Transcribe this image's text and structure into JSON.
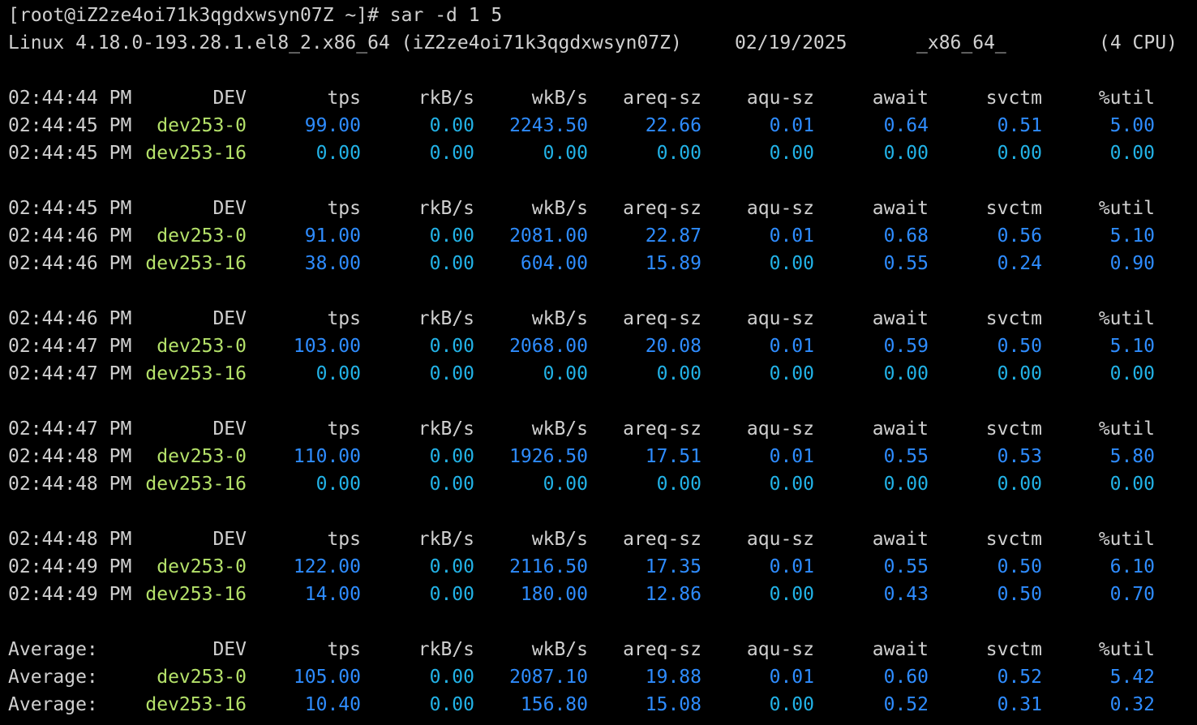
{
  "prompt": "[root@iZ2ze4oi71k3qgdxwsyn07Z ~]# sar -d 1 5",
  "sysinfo": {
    "kernel": "Linux 4.18.0-193.28.1.el8_2.x86_64 (iZ2ze4oi71k3qgdxwsyn07Z)",
    "date": "02/19/2025",
    "arch": "_x86_64_",
    "cpus": "(4 CPU)"
  },
  "header_labels": {
    "dev": "DEV",
    "tps": "tps",
    "rkb": "rkB/s",
    "wkb": "wkB/s",
    "areq": "areq-sz",
    "aqu": "aqu-sz",
    "await": "await",
    "svctm": "svctm",
    "util": "%util"
  },
  "colors": {
    "background": "#000000",
    "text": "#d0d0d0",
    "device": "#b5e26a",
    "nonzero_value": "#2e8cff",
    "zero_value": "#22b2e6"
  },
  "blocks": [
    {
      "header_time": "02:44:44 PM",
      "rows": [
        {
          "time": "02:44:45 PM",
          "dev": "dev253-0",
          "tps": "99.00",
          "rkb": "0.00",
          "wkb": "2243.50",
          "areq": "22.66",
          "aqu": "0.01",
          "await": "0.64",
          "svctm": "0.51",
          "util": "5.00"
        },
        {
          "time": "02:44:45 PM",
          "dev": "dev253-16",
          "tps": "0.00",
          "rkb": "0.00",
          "wkb": "0.00",
          "areq": "0.00",
          "aqu": "0.00",
          "await": "0.00",
          "svctm": "0.00",
          "util": "0.00"
        }
      ]
    },
    {
      "header_time": "02:44:45 PM",
      "rows": [
        {
          "time": "02:44:46 PM",
          "dev": "dev253-0",
          "tps": "91.00",
          "rkb": "0.00",
          "wkb": "2081.00",
          "areq": "22.87",
          "aqu": "0.01",
          "await": "0.68",
          "svctm": "0.56",
          "util": "5.10"
        },
        {
          "time": "02:44:46 PM",
          "dev": "dev253-16",
          "tps": "38.00",
          "rkb": "0.00",
          "wkb": "604.00",
          "areq": "15.89",
          "aqu": "0.00",
          "await": "0.55",
          "svctm": "0.24",
          "util": "0.90"
        }
      ]
    },
    {
      "header_time": "02:44:46 PM",
      "rows": [
        {
          "time": "02:44:47 PM",
          "dev": "dev253-0",
          "tps": "103.00",
          "rkb": "0.00",
          "wkb": "2068.00",
          "areq": "20.08",
          "aqu": "0.01",
          "await": "0.59",
          "svctm": "0.50",
          "util": "5.10"
        },
        {
          "time": "02:44:47 PM",
          "dev": "dev253-16",
          "tps": "0.00",
          "rkb": "0.00",
          "wkb": "0.00",
          "areq": "0.00",
          "aqu": "0.00",
          "await": "0.00",
          "svctm": "0.00",
          "util": "0.00"
        }
      ]
    },
    {
      "header_time": "02:44:47 PM",
      "rows": [
        {
          "time": "02:44:48 PM",
          "dev": "dev253-0",
          "tps": "110.00",
          "rkb": "0.00",
          "wkb": "1926.50",
          "areq": "17.51",
          "aqu": "0.01",
          "await": "0.55",
          "svctm": "0.53",
          "util": "5.80"
        },
        {
          "time": "02:44:48 PM",
          "dev": "dev253-16",
          "tps": "0.00",
          "rkb": "0.00",
          "wkb": "0.00",
          "areq": "0.00",
          "aqu": "0.00",
          "await": "0.00",
          "svctm": "0.00",
          "util": "0.00"
        }
      ]
    },
    {
      "header_time": "02:44:48 PM",
      "rows": [
        {
          "time": "02:44:49 PM",
          "dev": "dev253-0",
          "tps": "122.00",
          "rkb": "0.00",
          "wkb": "2116.50",
          "areq": "17.35",
          "aqu": "0.01",
          "await": "0.55",
          "svctm": "0.50",
          "util": "6.10"
        },
        {
          "time": "02:44:49 PM",
          "dev": "dev253-16",
          "tps": "14.00",
          "rkb": "0.00",
          "wkb": "180.00",
          "areq": "12.86",
          "aqu": "0.00",
          "await": "0.43",
          "svctm": "0.50",
          "util": "0.70"
        }
      ]
    },
    {
      "header_time": "Average:",
      "rows": [
        {
          "time": "Average:",
          "dev": "dev253-0",
          "tps": "105.00",
          "rkb": "0.00",
          "wkb": "2087.10",
          "areq": "19.88",
          "aqu": "0.01",
          "await": "0.60",
          "svctm": "0.52",
          "util": "5.42"
        },
        {
          "time": "Average:",
          "dev": "dev253-16",
          "tps": "10.40",
          "rkb": "0.00",
          "wkb": "156.80",
          "areq": "15.08",
          "aqu": "0.00",
          "await": "0.52",
          "svctm": "0.31",
          "util": "0.32"
        }
      ]
    }
  ]
}
